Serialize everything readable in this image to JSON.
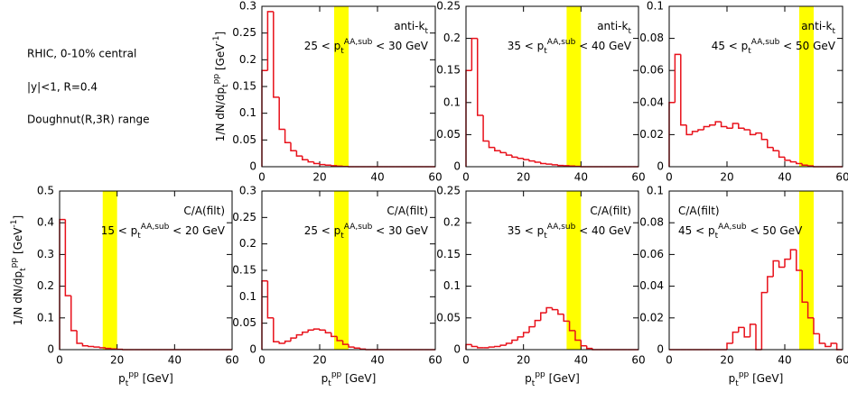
{
  "notes": [
    "RHIC, 0-10% central",
    "|y|<1, R=0.4",
    "Doughnut(R,3R) range"
  ],
  "chart_data": [
    {
      "type": "histogram",
      "row": "top",
      "ylabel": [
        [
          "1/N dN/dp",
          ""
        ],
        [
          "t",
          "sub"
        ],
        [
          "pp",
          "sup"
        ],
        [
          " [GeV",
          ""
        ],
        [
          "-1",
          "sup"
        ],
        [
          "]",
          ""
        ]
      ],
      "label": [
        [
          "anti-k",
          ""
        ],
        [
          "t",
          "sub"
        ]
      ],
      "range_label": [
        [
          "25 < p",
          ""
        ],
        [
          "t",
          "sub"
        ],
        [
          "AA,sub",
          "sup"
        ],
        [
          " < 30 GeV",
          ""
        ]
      ],
      "band": [
        25,
        30
      ],
      "band_color": "#ffff00",
      "color": "#e8101a",
      "bins": [
        0,
        2,
        4,
        6,
        8,
        10,
        12,
        14,
        16,
        18,
        20,
        22,
        24,
        26,
        28,
        30,
        32,
        34,
        36,
        38,
        40,
        42,
        44,
        46,
        48,
        50,
        52,
        54,
        56,
        58,
        60
      ],
      "values": [
        0.18,
        0.29,
        0.13,
        0.07,
        0.045,
        0.03,
        0.02,
        0.013,
        0.009,
        0.006,
        0.004,
        0.003,
        0.002,
        0.001,
        0.0005,
        0,
        0,
        0,
        0,
        0,
        0,
        0,
        0,
        0,
        0,
        0,
        0,
        0,
        0,
        0
      ],
      "xlim": [
        0,
        60
      ],
      "xticks": [
        0,
        20,
        40,
        60
      ],
      "ylim": [
        0,
        0.3
      ],
      "yticks": [
        0,
        0.05,
        0.1,
        0.15,
        0.2,
        0.25,
        0.3
      ]
    },
    {
      "type": "histogram",
      "row": "top",
      "label": [
        [
          "anti-k",
          ""
        ],
        [
          "t",
          "sub"
        ]
      ],
      "range_label": [
        [
          "35 < p",
          ""
        ],
        [
          "t",
          "sub"
        ],
        [
          "AA,sub",
          "sup"
        ],
        [
          " < 40 GeV",
          ""
        ]
      ],
      "band": [
        35,
        40
      ],
      "band_color": "#ffff00",
      "color": "#e8101a",
      "bins": [
        0,
        2,
        4,
        6,
        8,
        10,
        12,
        14,
        16,
        18,
        20,
        22,
        24,
        26,
        28,
        30,
        32,
        34,
        36,
        38,
        40,
        42,
        44,
        46,
        48,
        50,
        52,
        54,
        56,
        58,
        60
      ],
      "values": [
        0.15,
        0.2,
        0.08,
        0.04,
        0.03,
        0.025,
        0.022,
        0.018,
        0.015,
        0.013,
        0.011,
        0.009,
        0.007,
        0.005,
        0.004,
        0.003,
        0.002,
        0.0015,
        0.001,
        0.0005,
        0,
        0,
        0,
        0,
        0,
        0,
        0,
        0,
        0,
        0
      ],
      "xlim": [
        0,
        60
      ],
      "xticks": [
        0,
        20,
        40,
        60
      ],
      "ylim": [
        0,
        0.25
      ],
      "yticks": [
        0,
        0.05,
        0.1,
        0.15,
        0.2,
        0.25
      ]
    },
    {
      "type": "histogram",
      "row": "top",
      "label": [
        [
          "anti-k",
          ""
        ],
        [
          "t",
          "sub"
        ]
      ],
      "range_label": [
        [
          "45 < p",
          ""
        ],
        [
          "t",
          "sub"
        ],
        [
          "AA,sub",
          "sup"
        ],
        [
          " < 50 GeV",
          ""
        ]
      ],
      "band": [
        45,
        50
      ],
      "band_color": "#ffff00",
      "color": "#e8101a",
      "bins": [
        0,
        2,
        4,
        6,
        8,
        10,
        12,
        14,
        16,
        18,
        20,
        22,
        24,
        26,
        28,
        30,
        32,
        34,
        36,
        38,
        40,
        42,
        44,
        46,
        48,
        50,
        52,
        54,
        56,
        58,
        60
      ],
      "values": [
        0.04,
        0.07,
        0.026,
        0.02,
        0.022,
        0.023,
        0.025,
        0.026,
        0.028,
        0.025,
        0.024,
        0.027,
        0.024,
        0.023,
        0.02,
        0.021,
        0.017,
        0.012,
        0.01,
        0.006,
        0.004,
        0.003,
        0.002,
        0.001,
        0.0005,
        0,
        0,
        0,
        0,
        0
      ],
      "xlim": [
        0,
        60
      ],
      "xticks": [
        0,
        20,
        40,
        60
      ],
      "ylim": [
        0,
        0.1
      ],
      "yticks": [
        0,
        0.02,
        0.04,
        0.06,
        0.08,
        0.1
      ]
    },
    {
      "type": "histogram",
      "row": "bottom",
      "ylabel": [
        [
          "1/N dN/dp",
          ""
        ],
        [
          "t",
          "sub"
        ],
        [
          "pp",
          "sup"
        ],
        [
          " [GeV",
          ""
        ],
        [
          "-1",
          "sup"
        ],
        [
          "]",
          ""
        ]
      ],
      "xlabel": [
        [
          "p",
          ""
        ],
        [
          "t",
          "sub"
        ],
        [
          "pp",
          "sup"
        ],
        [
          " [GeV]",
          ""
        ]
      ],
      "label": [
        [
          "C/A(filt)",
          ""
        ]
      ],
      "range_label": [
        [
          "15 < p",
          ""
        ],
        [
          "t",
          "sub"
        ],
        [
          "AA,sub",
          "sup"
        ],
        [
          " < 20 GeV",
          ""
        ]
      ],
      "band": [
        15,
        20
      ],
      "band_color": "#ffff00",
      "color": "#e8101a",
      "bins": [
        0,
        2,
        4,
        6,
        8,
        10,
        12,
        14,
        16,
        18,
        20,
        22,
        24,
        26,
        28,
        30,
        32,
        34,
        36,
        38,
        40,
        42,
        44,
        46,
        48,
        50,
        52,
        54,
        56,
        58,
        60
      ],
      "values": [
        0.41,
        0.17,
        0.06,
        0.02,
        0.012,
        0.01,
        0.008,
        0.006,
        0.004,
        0.002,
        0.001,
        0,
        0,
        0,
        0,
        0,
        0,
        0,
        0,
        0,
        0,
        0,
        0,
        0,
        0,
        0,
        0,
        0,
        0,
        0
      ],
      "xlim": [
        0,
        60
      ],
      "xticks": [
        0,
        20,
        40,
        60
      ],
      "ylim": [
        0,
        0.5
      ],
      "yticks": [
        0,
        0.1,
        0.2,
        0.3,
        0.4,
        0.5
      ]
    },
    {
      "type": "histogram",
      "row": "bottom",
      "xlabel": [
        [
          "p",
          ""
        ],
        [
          "t",
          "sub"
        ],
        [
          "pp",
          "sup"
        ],
        [
          " [GeV]",
          ""
        ]
      ],
      "label": [
        [
          "C/A(filt)",
          ""
        ]
      ],
      "range_label": [
        [
          "25 < p",
          ""
        ],
        [
          "t",
          "sub"
        ],
        [
          "AA,sub",
          "sup"
        ],
        [
          " < 30 GeV",
          ""
        ]
      ],
      "band": [
        25,
        30
      ],
      "band_color": "#ffff00",
      "color": "#e8101a",
      "bins": [
        0,
        2,
        4,
        6,
        8,
        10,
        12,
        14,
        16,
        18,
        20,
        22,
        24,
        26,
        28,
        30,
        32,
        34,
        36,
        38,
        40,
        42,
        44,
        46,
        48,
        50,
        52,
        54,
        56,
        58,
        60
      ],
      "values": [
        0.13,
        0.06,
        0.015,
        0.012,
        0.016,
        0.022,
        0.028,
        0.033,
        0.037,
        0.039,
        0.037,
        0.032,
        0.025,
        0.017,
        0.01,
        0.005,
        0.003,
        0.001,
        0,
        0,
        0,
        0,
        0,
        0,
        0,
        0,
        0,
        0,
        0,
        0
      ],
      "xlim": [
        0,
        60
      ],
      "xticks": [
        0,
        20,
        40,
        60
      ],
      "ylim": [
        0,
        0.3
      ],
      "yticks": [
        0,
        0.05,
        0.1,
        0.15,
        0.2,
        0.25,
        0.3
      ]
    },
    {
      "type": "histogram",
      "row": "bottom",
      "xlabel": [
        [
          "p",
          ""
        ],
        [
          "t",
          "sub"
        ],
        [
          "pp",
          "sup"
        ],
        [
          " [GeV]",
          ""
        ]
      ],
      "label": [
        [
          "C/A(filt)",
          ""
        ]
      ],
      "range_label": [
        [
          "35 < p",
          ""
        ],
        [
          "t",
          "sub"
        ],
        [
          "AA,sub",
          "sup"
        ],
        [
          " < 40 GeV",
          ""
        ]
      ],
      "band": [
        35,
        40
      ],
      "band_color": "#ffff00",
      "color": "#e8101a",
      "bins": [
        0,
        2,
        4,
        6,
        8,
        10,
        12,
        14,
        16,
        18,
        20,
        22,
        24,
        26,
        28,
        30,
        32,
        34,
        36,
        38,
        40,
        42,
        44,
        46,
        48,
        50,
        52,
        54,
        56,
        58,
        60
      ],
      "values": [
        0.008,
        0.005,
        0.003,
        0.003,
        0.004,
        0.005,
        0.007,
        0.01,
        0.015,
        0.02,
        0.027,
        0.036,
        0.046,
        0.058,
        0.066,
        0.063,
        0.056,
        0.045,
        0.03,
        0.015,
        0.006,
        0.002,
        0,
        0,
        0,
        0,
        0,
        0,
        0,
        0
      ],
      "xlim": [
        0,
        60
      ],
      "xticks": [
        0,
        20,
        40,
        60
      ],
      "ylim": [
        0,
        0.25
      ],
      "yticks": [
        0,
        0.05,
        0.1,
        0.15,
        0.2,
        0.25
      ]
    },
    {
      "type": "histogram",
      "row": "bottom",
      "xlabel": [
        [
          "p",
          ""
        ],
        [
          "t",
          "sub"
        ],
        [
          "pp",
          "sup"
        ],
        [
          " [GeV]",
          ""
        ]
      ],
      "label": [
        [
          "C/A(filt)",
          ""
        ]
      ],
      "range_label": [
        [
          "45 < p",
          ""
        ],
        [
          "t",
          "sub"
        ],
        [
          "AA,sub",
          "sup"
        ],
        [
          " < 50 GeV",
          ""
        ]
      ],
      "label_loc": "upper left",
      "band": [
        45,
        50
      ],
      "band_color": "#ffff00",
      "color": "#e8101a",
      "bins": [
        0,
        2,
        4,
        6,
        8,
        10,
        12,
        14,
        16,
        18,
        20,
        22,
        24,
        26,
        28,
        30,
        32,
        34,
        36,
        38,
        40,
        42,
        44,
        46,
        48,
        50,
        52,
        54,
        56,
        58,
        60
      ],
      "values": [
        0,
        0,
        0,
        0,
        0,
        0,
        0,
        0,
        0,
        0,
        0.004,
        0.011,
        0.014,
        0.008,
        0.016,
        0,
        0.036,
        0.046,
        0.056,
        0.052,
        0.057,
        0.063,
        0.05,
        0.03,
        0.02,
        0.01,
        0.004,
        0.002,
        0.004,
        0
      ],
      "xlim": [
        0,
        60
      ],
      "xticks": [
        0,
        20,
        40,
        60
      ],
      "ylim": [
        0,
        0.1
      ],
      "yticks": [
        0,
        0.02,
        0.04,
        0.06,
        0.08,
        0.1
      ]
    }
  ]
}
